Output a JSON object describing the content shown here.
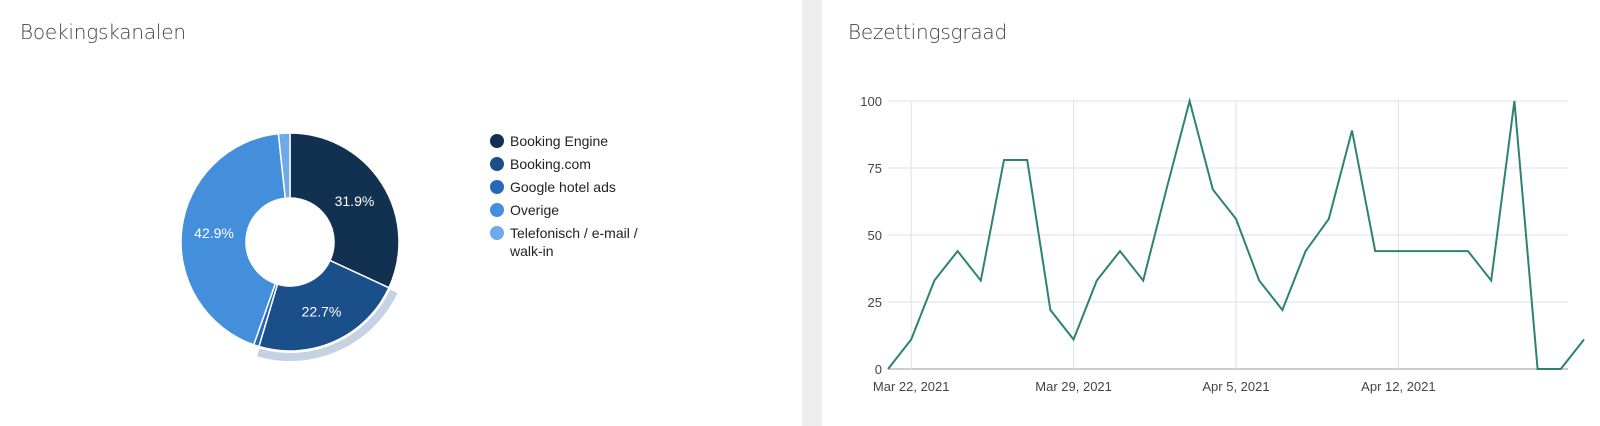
{
  "panels": {
    "left_title": "Boekingskanalen",
    "right_title": "Bezettingsgraad"
  },
  "chart_data": [
    {
      "type": "pie",
      "variant": "donut",
      "title": "Boekingskanalen",
      "legend_position": "right",
      "categories": [
        "Booking Engine",
        "Booking.com",
        "Google hotel ads",
        "Overige",
        "Telefonisch / e-mail / walk-in"
      ],
      "values": [
        31.9,
        22.7,
        0.8,
        42.9,
        1.7
      ],
      "labels": [
        "31.9%",
        "22.7%",
        "",
        "42.9%",
        ""
      ],
      "colors": [
        "#12304f",
        "#1b4f89",
        "#2668b8",
        "#448fdc",
        "#6ea9e8"
      ],
      "highlighted": "Booking.com"
    },
    {
      "type": "line",
      "title": "Bezettingsgraad",
      "series": [
        {
          "color": "#2c8374",
          "values": [
            0,
            11,
            33,
            44,
            33,
            78,
            78,
            22,
            11,
            33,
            44,
            33,
            67,
            100,
            67,
            56,
            33,
            22,
            44,
            56,
            89,
            44,
            44,
            44,
            44,
            44,
            33,
            100,
            0,
            0,
            11
          ]
        }
      ],
      "x_start": "2021-03-21",
      "x_ticks": [
        "Mar 22, 2021",
        "Mar 29, 2021",
        "Apr 5, 2021",
        "Apr 12, 2021"
      ],
      "x_tick_dates": [
        "2021-03-22",
        "2021-03-29",
        "2021-04-05",
        "2021-04-12"
      ],
      "y_ticks": [
        "0",
        "25",
        "50",
        "75",
        "100"
      ],
      "ylim": [
        0,
        100
      ],
      "grid": true
    }
  ]
}
